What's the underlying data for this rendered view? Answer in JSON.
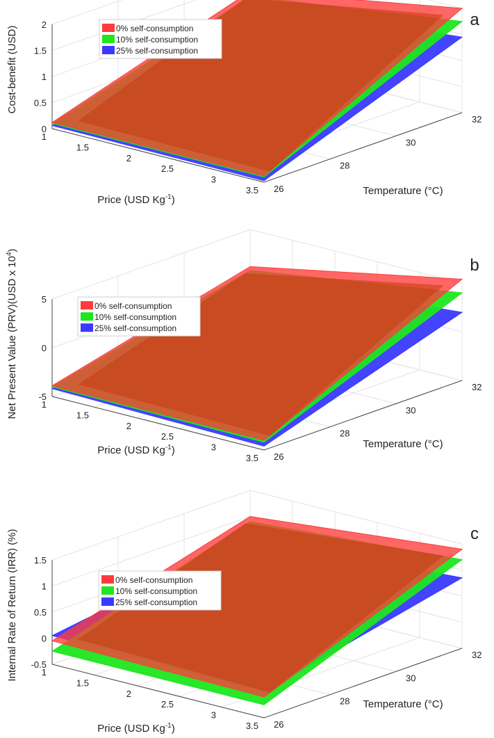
{
  "figure": {
    "surface_opacity": 0.72,
    "panels_note": "three stacked 3D surface charts sharing price and temperature axes"
  },
  "chart_data": [
    {
      "type": "surface3d",
      "panel_letter": "a",
      "xlabel": "Price (USD Kg",
      "xlabel_sup": "-1",
      "xlabel_tail": ")",
      "ylabel": "Temperature (°C)",
      "zlabel": "Cost-benefit (USD)",
      "xlim": [
        1,
        3.5
      ],
      "ylim": [
        26,
        32
      ],
      "zlim": [
        0,
        2
      ],
      "xticks": [
        "1",
        "1.5",
        "2",
        "2.5",
        "3",
        "3.5"
      ],
      "yticks": [
        "26",
        "28",
        "30",
        "32"
      ],
      "zticks": [
        "0",
        "0.5",
        "1",
        "1.5",
        "2"
      ],
      "legend": [
        "0% self-consumption",
        "10% self-consumption",
        "25% self-consumption"
      ],
      "legend_position": "top-left",
      "grid": true,
      "series": [
        {
          "name": "0% self-consumption",
          "color": "#ff3b3b",
          "corners": {
            "p1_t26": 0.12,
            "p35_t26": 0.12,
            "p1_t32": 1.3,
            "p35_t32": 2.0
          }
        },
        {
          "name": "10% self-consumption",
          "color": "#1ee61e",
          "corners": {
            "p1_t26": 0.1,
            "p35_t26": 0.1,
            "p1_t32": 1.2,
            "p35_t32": 1.75
          }
        },
        {
          "name": "25% self-consumption",
          "color": "#3a3aff",
          "corners": {
            "p1_t26": 0.06,
            "p35_t26": 0.03,
            "p1_t32": 1.05,
            "p35_t32": 1.45
          }
        }
      ]
    },
    {
      "type": "surface3d",
      "panel_letter": "b",
      "xlabel": "Price (USD Kg",
      "xlabel_sup": "-1",
      "xlabel_tail": ")",
      "ylabel": "Temperature (°C)",
      "zlabel": "Net Present Value (PRV)(USD x 10",
      "zlabel_sup": "4",
      "zlabel_tail": ")",
      "xlim": [
        1,
        3.5
      ],
      "ylim": [
        26,
        32
      ],
      "zlim": [
        -5,
        5
      ],
      "xticks": [
        "1",
        "1.5",
        "2",
        "2.5",
        "3",
        "3.5"
      ],
      "yticks": [
        "26",
        "28",
        "30",
        "32"
      ],
      "zticks": [
        "-5",
        "0",
        "5"
      ],
      "legend": [
        "0% self-consumption",
        "10% self-consumption",
        "25% self-consumption"
      ],
      "legend_position": "left",
      "grid": true,
      "series": [
        {
          "name": "0% self-consumption",
          "color": "#ff3b3b",
          "corners": {
            "p1_t26": -3.9,
            "p35_t26": -4.0,
            "p1_t32": 1.2,
            "p35_t32": 5.4
          }
        },
        {
          "name": "10% self-consumption",
          "color": "#1ee61e",
          "corners": {
            "p1_t26": -4.0,
            "p35_t26": -4.2,
            "p1_t32": 0.8,
            "p35_t32": 4.0
          }
        },
        {
          "name": "25% self-consumption",
          "color": "#3a3aff",
          "corners": {
            "p1_t26": -4.2,
            "p35_t26": -4.6,
            "p1_t32": 0.2,
            "p35_t32": 2.0
          }
        }
      ]
    },
    {
      "type": "surface3d",
      "panel_letter": "c",
      "xlabel": "Price (USD Kg",
      "xlabel_sup": "-1",
      "xlabel_tail": ")",
      "ylabel": "Temperature (°C)",
      "zlabel": "Internal Rate of Return (IRR) (%)",
      "xlim": [
        1,
        3.5
      ],
      "ylim": [
        26,
        32
      ],
      "zlim": [
        -0.5,
        1.5
      ],
      "xticks": [
        "1",
        "1.5",
        "2",
        "2.5",
        "3",
        "3.5"
      ],
      "yticks": [
        "26",
        "28",
        "30",
        "32"
      ],
      "zticks": [
        "-0.5",
        "0",
        "0.5",
        "1",
        "1.5"
      ],
      "legend": [
        "0% self-consumption",
        "10% self-consumption",
        "25% self-consumption"
      ],
      "legend_position": "left",
      "grid": true,
      "series": [
        {
          "name": "0% self-consumption",
          "color": "#ff3b3b",
          "corners": {
            "p1_t26": -0.05,
            "p35_t26": -0.1,
            "p1_t32": 1.0,
            "p35_t32": 1.4
          }
        },
        {
          "name": "10% self-consumption",
          "color": "#1ee61e",
          "corners": {
            "p1_t26": -0.25,
            "p35_t26": -0.25,
            "p1_t32": 0.9,
            "p35_t32": 1.2
          }
        },
        {
          "name": "25% self-consumption",
          "color": "#3a3aff",
          "corners": {
            "p1_t26": 0.05,
            "p35_t26": 0.0,
            "p1_t32": 0.6,
            "p35_t32": 0.85
          }
        }
      ]
    }
  ]
}
